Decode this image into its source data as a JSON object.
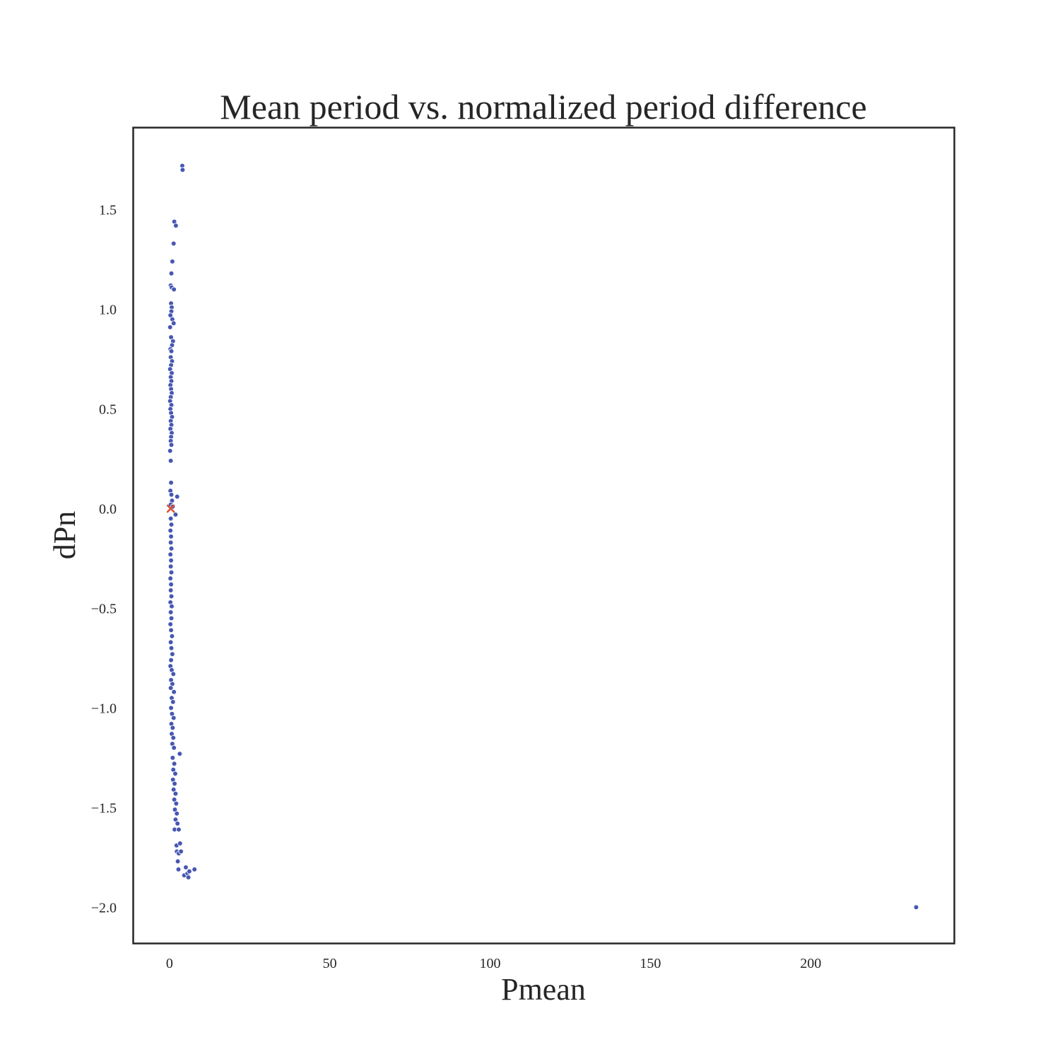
{
  "chart_data": {
    "type": "scatter",
    "title": "Mean period vs. normalized period difference",
    "xlabel": "Pmean",
    "ylabel": "dPn",
    "xlim": [
      -11.2,
      244.7
    ],
    "ylim": [
      -2.18,
      1.91
    ],
    "xticks": [
      0,
      50,
      100,
      150,
      200
    ],
    "yticks": [
      -2.0,
      -1.5,
      -1.0,
      -0.5,
      0.0,
      0.5,
      1.0,
      1.5
    ],
    "ytick_labels": [
      "−2.0",
      "−1.5",
      "−1.0",
      "−0.5",
      "0.0",
      "0.5",
      "1.0",
      "1.5"
    ],
    "grid": false,
    "legend": "none",
    "colors": {
      "points": "#4757b3",
      "marker": "#d9553b",
      "axes": "#262626"
    },
    "series": [
      {
        "marker": "dot",
        "color": "#4757b3",
        "points": [
          [
            4.0,
            1.72
          ],
          [
            4.1,
            1.7
          ],
          [
            1.5,
            1.44
          ],
          [
            2.0,
            1.42
          ],
          [
            1.3,
            1.33
          ],
          [
            0.9,
            1.24
          ],
          [
            0.6,
            1.18
          ],
          [
            0.4,
            1.12
          ],
          [
            0.7,
            1.11
          ],
          [
            1.4,
            1.1
          ],
          [
            0.5,
            1.03
          ],
          [
            0.7,
            1.01
          ],
          [
            0.6,
            0.99
          ],
          [
            0.3,
            0.97
          ],
          [
            0.9,
            0.95
          ],
          [
            1.3,
            0.93
          ],
          [
            0.2,
            0.91
          ],
          [
            0.5,
            0.86
          ],
          [
            1.1,
            0.84
          ],
          [
            0.8,
            0.82
          ],
          [
            0.3,
            0.8
          ],
          [
            0.6,
            0.79
          ],
          [
            0.4,
            0.76
          ],
          [
            0.8,
            0.74
          ],
          [
            0.5,
            0.72
          ],
          [
            0.2,
            0.7
          ],
          [
            0.7,
            0.68
          ],
          [
            0.4,
            0.66
          ],
          [
            0.6,
            0.64
          ],
          [
            0.3,
            0.62
          ],
          [
            0.5,
            0.6
          ],
          [
            0.7,
            0.58
          ],
          [
            0.4,
            0.56
          ],
          [
            0.2,
            0.54
          ],
          [
            0.6,
            0.52
          ],
          [
            0.3,
            0.5
          ],
          [
            0.5,
            0.48
          ],
          [
            0.8,
            0.46
          ],
          [
            0.4,
            0.44
          ],
          [
            0.6,
            0.42
          ],
          [
            0.3,
            0.4
          ],
          [
            0.7,
            0.38
          ],
          [
            0.5,
            0.36
          ],
          [
            0.4,
            0.34
          ],
          [
            0.6,
            0.32
          ],
          [
            0.2,
            0.29
          ],
          [
            0.4,
            0.24
          ],
          [
            0.5,
            0.13
          ],
          [
            0.3,
            0.09
          ],
          [
            0.6,
            0.07
          ],
          [
            2.4,
            0.06
          ],
          [
            0.8,
            0.04
          ],
          [
            0.4,
            0.02
          ],
          [
            1.0,
            0.01
          ],
          [
            1.9,
            -0.03
          ],
          [
            0.4,
            -0.05
          ],
          [
            0.6,
            -0.08
          ],
          [
            0.3,
            -0.11
          ],
          [
            0.5,
            -0.14
          ],
          [
            0.4,
            -0.17
          ],
          [
            0.6,
            -0.2
          ],
          [
            0.3,
            -0.23
          ],
          [
            0.5,
            -0.26
          ],
          [
            0.4,
            -0.29
          ],
          [
            0.6,
            -0.32
          ],
          [
            0.3,
            -0.35
          ],
          [
            0.5,
            -0.38
          ],
          [
            0.4,
            -0.41
          ],
          [
            0.6,
            -0.44
          ],
          [
            0.3,
            -0.47
          ],
          [
            0.7,
            -0.49
          ],
          [
            0.4,
            -0.52
          ],
          [
            0.6,
            -0.55
          ],
          [
            0.3,
            -0.58
          ],
          [
            0.5,
            -0.61
          ],
          [
            0.8,
            -0.64
          ],
          [
            0.4,
            -0.67
          ],
          [
            0.6,
            -0.7
          ],
          [
            0.9,
            -0.73
          ],
          [
            0.5,
            -0.76
          ],
          [
            0.3,
            -0.79
          ],
          [
            0.7,
            -0.81
          ],
          [
            1.2,
            -0.83
          ],
          [
            0.5,
            -0.86
          ],
          [
            0.9,
            -0.88
          ],
          [
            0.4,
            -0.9
          ],
          [
            1.4,
            -0.92
          ],
          [
            0.7,
            -0.95
          ],
          [
            1.1,
            -0.97
          ],
          [
            0.5,
            -1.0
          ],
          [
            0.8,
            -1.03
          ],
          [
            1.3,
            -1.05
          ],
          [
            0.6,
            -1.08
          ],
          [
            1.0,
            -1.1
          ],
          [
            0.7,
            -1.13
          ],
          [
            1.2,
            -1.15
          ],
          [
            0.9,
            -1.18
          ],
          [
            1.4,
            -1.2
          ],
          [
            3.2,
            -1.23
          ],
          [
            1.0,
            -1.25
          ],
          [
            1.5,
            -1.28
          ],
          [
            1.2,
            -1.31
          ],
          [
            1.8,
            -1.33
          ],
          [
            1.1,
            -1.36
          ],
          [
            1.6,
            -1.38
          ],
          [
            1.3,
            -1.41
          ],
          [
            1.9,
            -1.43
          ],
          [
            1.5,
            -1.46
          ],
          [
            2.1,
            -1.48
          ],
          [
            1.7,
            -1.51
          ],
          [
            2.3,
            -1.53
          ],
          [
            1.9,
            -1.56
          ],
          [
            2.5,
            -1.58
          ],
          [
            1.6,
            -1.61
          ],
          [
            2.9,
            -1.61
          ],
          [
            2.2,
            -1.69
          ],
          [
            3.3,
            -1.68
          ],
          [
            2.3,
            -1.72
          ],
          [
            2.9,
            -1.73
          ],
          [
            3.6,
            -1.72
          ],
          [
            2.6,
            -1.77
          ],
          [
            2.8,
            -1.81
          ],
          [
            5.1,
            -1.8
          ],
          [
            4.6,
            -1.84
          ],
          [
            5.6,
            -1.83
          ],
          [
            6.2,
            -1.82
          ],
          [
            5.9,
            -1.85
          ],
          [
            7.8,
            -1.81
          ],
          [
            232.9,
            -2.0
          ]
        ]
      },
      {
        "marker": "x",
        "color": "#d9553b",
        "points": [
          [
            0.4,
            0.0
          ]
        ]
      }
    ]
  }
}
